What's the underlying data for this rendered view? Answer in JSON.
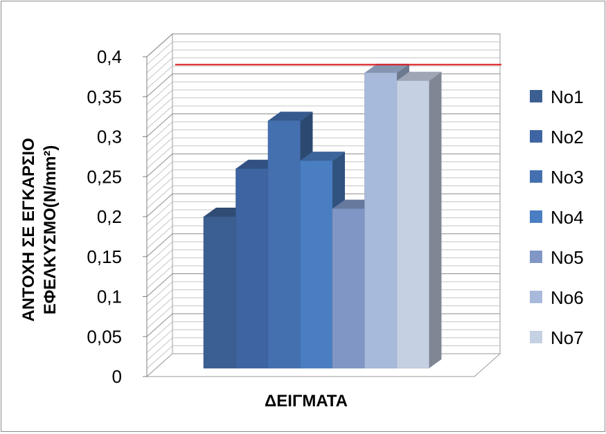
{
  "chart_data": {
    "type": "bar",
    "style": "3d-clustered-column",
    "title": "",
    "xlabel": "ΔΕΙΓΜΑΤΑ",
    "ylabel_line1": "ΑΝΤΟΧΗ ΣΕ ΕΓΚΑΡΣΙΟ",
    "ylabel_line2": "ΕΦΕΛΚΥΣΜΟ(N/mm²)",
    "ylim": [
      0,
      0.4
    ],
    "yticks": [
      "0",
      "0,05",
      "0,1",
      "0,15",
      "0,2",
      "0,25",
      "0,3",
      "0,35",
      "0,4"
    ],
    "grid": true,
    "legend_position": "right",
    "series": [
      {
        "name": "No1",
        "values": [
          0.2
        ],
        "color": "#3c5f92"
      },
      {
        "name": "No2",
        "values": [
          0.26
        ],
        "color": "#3e65a2"
      },
      {
        "name": "No3",
        "values": [
          0.32
        ],
        "color": "#4470b0"
      },
      {
        "name": "No4",
        "values": [
          0.27
        ],
        "color": "#4a7ec2"
      },
      {
        "name": "No5",
        "values": [
          0.21
        ],
        "color": "#8097c6"
      },
      {
        "name": "No6",
        "values": [
          0.38
        ],
        "color": "#a8badb"
      },
      {
        "name": "No7",
        "values": [
          0.37
        ],
        "color": "#c5d0e3"
      }
    ],
    "reference_line": {
      "value": 0.372,
      "color": "#e0161b"
    }
  }
}
